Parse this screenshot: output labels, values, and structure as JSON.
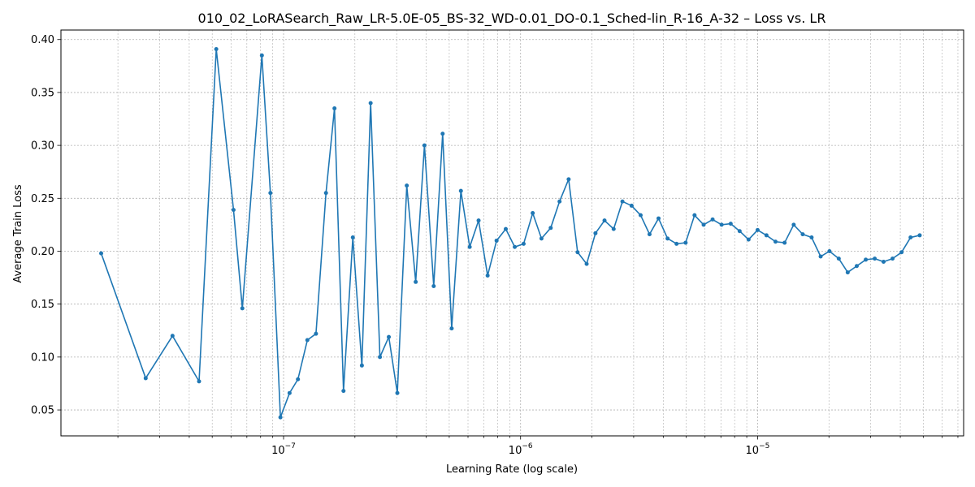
{
  "chart_data": {
    "type": "line",
    "title": "010_02_LoRASearch_Raw_LR-5.0E-05_BS-32_WD-0.01_DO-0.1_Sched-lin_R-16_A-32 – Loss vs. LR",
    "xlabel": "Learning Rate (log scale)",
    "ylabel": "Average Train Loss",
    "xscale": "log",
    "xlim": [
      1.15e-08,
      7.4e-05
    ],
    "ylim": [
      0.0255,
      0.409
    ],
    "grid": true,
    "color": "#1f77b4",
    "x_major_ticks": [
      {
        "value": 1e-07,
        "base": "10",
        "exp": "−7"
      },
      {
        "value": 1e-06,
        "base": "10",
        "exp": "−6"
      },
      {
        "value": 1e-05,
        "base": "10",
        "exp": "−5"
      }
    ],
    "y_ticks": [
      {
        "value": 0.05,
        "label": "0.05"
      },
      {
        "value": 0.1,
        "label": "0.10"
      },
      {
        "value": 0.15,
        "label": "0.15"
      },
      {
        "value": 0.2,
        "label": "0.20"
      },
      {
        "value": 0.25,
        "label": "0.25"
      },
      {
        "value": 0.3,
        "label": "0.30"
      },
      {
        "value": 0.35,
        "label": "0.35"
      },
      {
        "value": 0.4,
        "label": "0.40"
      }
    ],
    "x": [
      1.7e-08,
      2.62e-08,
      3.4e-08,
      4.4e-08,
      5.2e-08,
      6.15e-08,
      6.7e-08,
      8.1e-08,
      8.8e-08,
      9.7e-08,
      1.06e-07,
      1.15e-07,
      1.26e-07,
      1.37e-07,
      1.51e-07,
      1.64e-07,
      1.79e-07,
      1.96e-07,
      2.14e-07,
      2.33e-07,
      2.55e-07,
      2.78e-07,
      3.02e-07,
      3.31e-07,
      3.61e-07,
      3.93e-07,
      4.3e-07,
      4.69e-07,
      5.12e-07,
      5.6e-07,
      6.1e-07,
      6.65e-07,
      7.26e-07,
      7.92e-07,
      8.66e-07,
      9.45e-07,
      1.03e-06,
      1.125e-06,
      1.225e-06,
      1.34e-06,
      1.46e-06,
      1.595e-06,
      1.74e-06,
      1.9e-06,
      2.07e-06,
      2.26e-06,
      2.47e-06,
      2.69e-06,
      2.94e-06,
      3.21e-06,
      3.5e-06,
      3.82e-06,
      4.17e-06,
      4.55e-06,
      4.97e-06,
      5.42e-06,
      5.92e-06,
      6.46e-06,
      7.05e-06,
      7.7e-06,
      8.4e-06,
      9.16e-06,
      1e-05,
      1.09e-05,
      1.19e-05,
      1.3e-05,
      1.42e-05,
      1.55e-05,
      1.69e-05,
      1.845e-05,
      2.01e-05,
      2.2e-05,
      2.4e-05,
      2.62e-05,
      2.86e-05,
      3.12e-05,
      3.4e-05,
      3.71e-05,
      4.05e-05,
      4.42e-05,
      4.83e-05
    ],
    "y": [
      0.198,
      0.08,
      0.12,
      0.077,
      0.391,
      0.239,
      0.146,
      0.385,
      0.255,
      0.043,
      0.066,
      0.079,
      0.116,
      0.122,
      0.255,
      0.335,
      0.068,
      0.213,
      0.092,
      0.34,
      0.1,
      0.119,
      0.066,
      0.262,
      0.171,
      0.3,
      0.167,
      0.311,
      0.127,
      0.257,
      0.204,
      0.229,
      0.177,
      0.21,
      0.221,
      0.204,
      0.207,
      0.236,
      0.212,
      0.222,
      0.247,
      0.268,
      0.199,
      0.188,
      0.217,
      0.229,
      0.221,
      0.247,
      0.243,
      0.234,
      0.216,
      0.231,
      0.212,
      0.207,
      0.208,
      0.234,
      0.225,
      0.23,
      0.225,
      0.226,
      0.219,
      0.211,
      0.22,
      0.215,
      0.209,
      0.208,
      0.225,
      0.216,
      0.213,
      0.195,
      0.2,
      0.193,
      0.18,
      0.186,
      0.192,
      0.193,
      0.19,
      0.193,
      0.199,
      0.213,
      0.215
    ]
  }
}
